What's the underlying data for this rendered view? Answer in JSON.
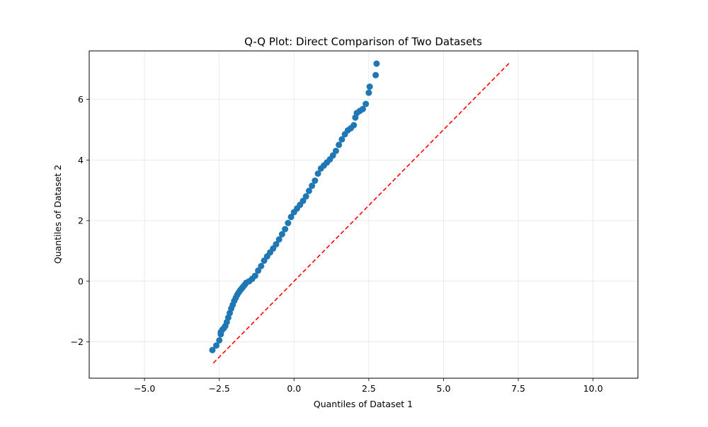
{
  "chart_data": {
    "type": "scatter",
    "title": "Q-Q Plot: Direct Comparison of Two Datasets",
    "xlabel": "Quantiles of Dataset 1",
    "ylabel": "Quantiles of Dataset 2",
    "xlim": [
      -6.85,
      11.5
    ],
    "ylim": [
      -3.2,
      7.6
    ],
    "xticks": [
      -5.0,
      -2.5,
      0.0,
      2.5,
      5.0,
      7.5,
      10.0
    ],
    "xtick_labels": [
      "−5.0",
      "−2.5",
      "0.0",
      "2.5",
      "5.0",
      "7.5",
      "10.0"
    ],
    "yticks": [
      -2,
      0,
      2,
      4,
      6
    ],
    "ytick_labels": [
      "−2",
      "0",
      "2",
      "4",
      "6"
    ],
    "grid": true,
    "point_color": "#1f77b4",
    "reference_line": {
      "x": [
        -2.7,
        7.2
      ],
      "y": [
        -2.7,
        7.2
      ],
      "color": "#ff0000",
      "style": "dashed"
    },
    "points": {
      "x": [
        -2.73,
        -2.6,
        -2.5,
        -2.45,
        -2.45,
        -2.4,
        -2.35,
        -2.3,
        -2.25,
        -2.2,
        -2.15,
        -2.1,
        -2.05,
        -2.0,
        -1.95,
        -1.9,
        -1.85,
        -1.8,
        -1.75,
        -1.7,
        -1.65,
        -1.6,
        -1.5,
        -1.4,
        -1.3,
        -1.2,
        -1.1,
        -1.0,
        -0.9,
        -0.8,
        -0.7,
        -0.6,
        -0.5,
        -0.4,
        -0.3,
        -0.2,
        -0.1,
        0.0,
        0.1,
        0.2,
        0.3,
        0.4,
        0.5,
        0.6,
        0.7,
        0.8,
        0.9,
        1.0,
        1.1,
        1.2,
        1.3,
        1.4,
        1.5,
        1.6,
        1.7,
        1.8,
        1.9,
        2.0,
        2.05,
        2.1,
        2.2,
        2.3,
        2.4,
        2.5,
        2.53,
        2.73,
        2.76
      ],
      "y": [
        -2.27,
        -2.12,
        -1.95,
        -1.75,
        -1.68,
        -1.6,
        -1.55,
        -1.48,
        -1.35,
        -1.2,
        -1.05,
        -0.9,
        -0.78,
        -0.65,
        -0.55,
        -0.45,
        -0.37,
        -0.3,
        -0.24,
        -0.18,
        -0.12,
        -0.05,
        0.0,
        0.08,
        0.18,
        0.35,
        0.5,
        0.68,
        0.82,
        0.95,
        1.08,
        1.22,
        1.38,
        1.55,
        1.72,
        1.92,
        2.12,
        2.28,
        2.4,
        2.52,
        2.65,
        2.8,
        2.98,
        3.15,
        3.32,
        3.55,
        3.72,
        3.82,
        3.92,
        4.02,
        4.15,
        4.3,
        4.5,
        4.68,
        4.85,
        4.98,
        5.05,
        5.15,
        5.4,
        5.55,
        5.62,
        5.68,
        5.85,
        6.22,
        6.42,
        6.8,
        7.18
      ]
    }
  }
}
